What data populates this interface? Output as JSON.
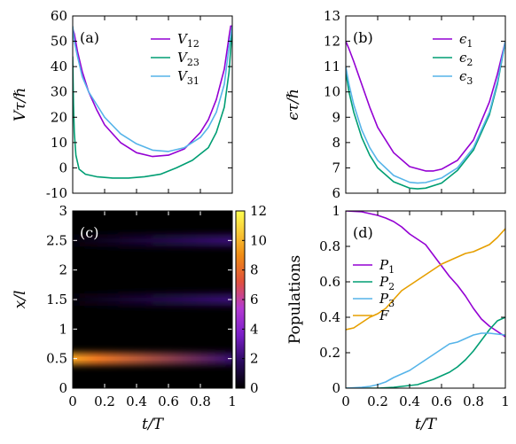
{
  "colors": {
    "purple": "#9400d3",
    "green": "#009e73",
    "lightblue": "#56b4e9",
    "orange": "#e69f00"
  },
  "chart_data": [
    {
      "id": "a",
      "type": "line",
      "panel_label": "(a)",
      "title": "",
      "xlabel": "",
      "ylabel": "Vτ/ℏ",
      "xlim": [
        0,
        1
      ],
      "ylim": [
        -10,
        60
      ],
      "xticks": [],
      "yticks": [
        -10,
        0,
        10,
        20,
        30,
        40,
        50,
        60
      ],
      "legend_position": "top-right",
      "series": [
        {
          "name": "V12",
          "name_main": "V",
          "name_sub": "12",
          "color": "#9400d3",
          "x": [
            0,
            0.01,
            0.03,
            0.06,
            0.1,
            0.15,
            0.2,
            0.3,
            0.4,
            0.5,
            0.6,
            0.7,
            0.8,
            0.85,
            0.9,
            0.95,
            0.98,
            0.99,
            1.0
          ],
          "y": [
            55,
            53,
            46,
            38,
            30,
            23,
            17,
            10,
            6,
            4.5,
            5,
            7.5,
            14,
            19,
            27,
            39,
            52,
            56,
            56
          ]
        },
        {
          "name": "V23",
          "name_main": "V",
          "name_sub": "23",
          "color": "#009e73",
          "x": [
            0,
            0.005,
            0.01,
            0.02,
            0.04,
            0.08,
            0.15,
            0.25,
            0.35,
            0.45,
            0.55,
            0.65,
            0.75,
            0.85,
            0.9,
            0.95,
            0.98,
            1.0
          ],
          "y": [
            44,
            25,
            14,
            5,
            -0.5,
            -2.5,
            -3.5,
            -4,
            -4,
            -3.5,
            -2.5,
            0,
            3,
            8,
            14,
            24,
            38,
            56
          ]
        },
        {
          "name": "V31",
          "name_main": "V",
          "name_sub": "31",
          "color": "#56b4e9",
          "x": [
            0,
            0.01,
            0.03,
            0.06,
            0.1,
            0.15,
            0.2,
            0.3,
            0.4,
            0.5,
            0.6,
            0.7,
            0.8,
            0.85,
            0.9,
            0.95,
            0.98,
            1.0
          ],
          "y": [
            56,
            50,
            44,
            36,
            30,
            25,
            20,
            13.5,
            9.5,
            7,
            6.5,
            8,
            12,
            16,
            22,
            33,
            48,
            56
          ]
        }
      ]
    },
    {
      "id": "b",
      "type": "line",
      "panel_label": "(b)",
      "title": "",
      "xlabel": "",
      "ylabel": "ϵτ/ℏ",
      "xlim": [
        0,
        1
      ],
      "ylim": [
        6,
        13
      ],
      "xticks": [],
      "yticks": [
        6,
        7,
        8,
        9,
        10,
        11,
        12,
        13
      ],
      "legend_position": "top-right",
      "series": [
        {
          "name": "ϵ1",
          "name_main": "ϵ",
          "name_sub": "1",
          "color": "#9400d3",
          "x": [
            0,
            0.02,
            0.05,
            0.1,
            0.15,
            0.2,
            0.3,
            0.4,
            0.5,
            0.55,
            0.6,
            0.7,
            0.8,
            0.9,
            0.95,
            1.0
          ],
          "y": [
            12,
            11.7,
            11.2,
            10.3,
            9.4,
            8.6,
            7.6,
            7.05,
            6.88,
            6.88,
            6.95,
            7.3,
            8.1,
            9.6,
            10.7,
            12.0
          ]
        },
        {
          "name": "ϵ2",
          "name_main": "ϵ",
          "name_sub": "2",
          "color": "#009e73",
          "x": [
            0,
            0.02,
            0.05,
            0.1,
            0.15,
            0.2,
            0.3,
            0.4,
            0.45,
            0.5,
            0.6,
            0.7,
            0.8,
            0.9,
            0.95,
            1.0
          ],
          "y": [
            10.8,
            10.0,
            9.2,
            8.2,
            7.5,
            7.0,
            6.45,
            6.2,
            6.17,
            6.2,
            6.4,
            6.9,
            7.7,
            9.1,
            10.3,
            12.0
          ]
        },
        {
          "name": "ϵ3",
          "name_main": "ϵ",
          "name_sub": "3",
          "color": "#56b4e9",
          "x": [
            0,
            0.02,
            0.05,
            0.1,
            0.15,
            0.2,
            0.3,
            0.4,
            0.45,
            0.5,
            0.6,
            0.7,
            0.8,
            0.9,
            0.95,
            1.0
          ],
          "y": [
            11.0,
            10.3,
            9.5,
            8.5,
            7.8,
            7.3,
            6.7,
            6.43,
            6.4,
            6.42,
            6.6,
            7.0,
            7.8,
            9.2,
            10.4,
            12.0
          ]
        }
      ]
    },
    {
      "id": "c",
      "type": "heatmap",
      "panel_label": "(c)",
      "title": "",
      "xlabel": "t/T",
      "ylabel": "x/l",
      "xlim": [
        0,
        1
      ],
      "ylim": [
        0,
        3
      ],
      "xticks": [
        0,
        0.2,
        0.4,
        0.6,
        0.8,
        1
      ],
      "yticks": [
        0,
        0.5,
        1,
        1.5,
        2,
        2.5,
        3
      ],
      "colorbar": {
        "min": 0,
        "max": 12,
        "ticks": [
          0,
          2,
          4,
          6,
          8,
          10,
          12
        ]
      },
      "bands": [
        {
          "y": 0.5,
          "left_intensity": 9.5,
          "right_intensity": 2.0
        },
        {
          "y": 1.5,
          "left_intensity": 0.2,
          "right_intensity": 2.0
        },
        {
          "y": 2.5,
          "left_intensity": 0.2,
          "right_intensity": 2.0
        }
      ]
    },
    {
      "id": "d",
      "type": "line",
      "panel_label": "(d)",
      "title": "",
      "xlabel": "t/T",
      "ylabel": "Populations",
      "xlim": [
        0,
        1
      ],
      "ylim": [
        0,
        1
      ],
      "xticks": [
        0,
        0.2,
        0.4,
        0.6,
        0.8,
        1
      ],
      "yticks": [
        0,
        0.2,
        0.4,
        0.6,
        0.8,
        1
      ],
      "legend_position": "center-left",
      "series": [
        {
          "name": "P1",
          "name_main": "P",
          "name_sub": "1",
          "color": "#9400d3",
          "x": [
            0,
            0.1,
            0.15,
            0.2,
            0.25,
            0.3,
            0.35,
            0.4,
            0.45,
            0.5,
            0.55,
            0.6,
            0.65,
            0.7,
            0.75,
            0.8,
            0.85,
            0.9,
            0.95,
            1.0
          ],
          "y": [
            1.0,
            0.995,
            0.985,
            0.975,
            0.96,
            0.94,
            0.91,
            0.87,
            0.84,
            0.81,
            0.75,
            0.69,
            0.63,
            0.58,
            0.52,
            0.45,
            0.39,
            0.35,
            0.32,
            0.29
          ]
        },
        {
          "name": "P2",
          "name_main": "P",
          "name_sub": "2",
          "color": "#009e73",
          "x": [
            0,
            0.2,
            0.3,
            0.4,
            0.45,
            0.5,
            0.55,
            0.6,
            0.65,
            0.7,
            0.75,
            0.8,
            0.85,
            0.9,
            0.95,
            1.0
          ],
          "y": [
            0,
            0,
            0.005,
            0.015,
            0.02,
            0.035,
            0.05,
            0.07,
            0.09,
            0.12,
            0.16,
            0.21,
            0.27,
            0.33,
            0.38,
            0.4
          ]
        },
        {
          "name": "P3",
          "name_main": "P",
          "name_sub": "3",
          "color": "#56b4e9",
          "x": [
            0,
            0.1,
            0.15,
            0.2,
            0.25,
            0.3,
            0.35,
            0.4,
            0.45,
            0.5,
            0.55,
            0.6,
            0.65,
            0.7,
            0.75,
            0.8,
            0.85,
            0.9,
            0.95,
            1.0
          ],
          "y": [
            0,
            0.005,
            0.01,
            0.02,
            0.035,
            0.06,
            0.08,
            0.1,
            0.13,
            0.16,
            0.19,
            0.22,
            0.25,
            0.26,
            0.28,
            0.3,
            0.31,
            0.31,
            0.305,
            0.3
          ]
        },
        {
          "name": "F",
          "name_main": "F",
          "name_sub": "",
          "color": "#e69f00",
          "x": [
            0,
            0.05,
            0.1,
            0.15,
            0.2,
            0.25,
            0.3,
            0.35,
            0.4,
            0.45,
            0.5,
            0.55,
            0.6,
            0.65,
            0.7,
            0.75,
            0.8,
            0.85,
            0.9,
            0.95,
            1.0
          ],
          "y": [
            0.33,
            0.34,
            0.37,
            0.4,
            0.42,
            0.45,
            0.5,
            0.55,
            0.58,
            0.61,
            0.64,
            0.67,
            0.7,
            0.72,
            0.74,
            0.76,
            0.77,
            0.79,
            0.81,
            0.85,
            0.9
          ]
        }
      ]
    }
  ]
}
